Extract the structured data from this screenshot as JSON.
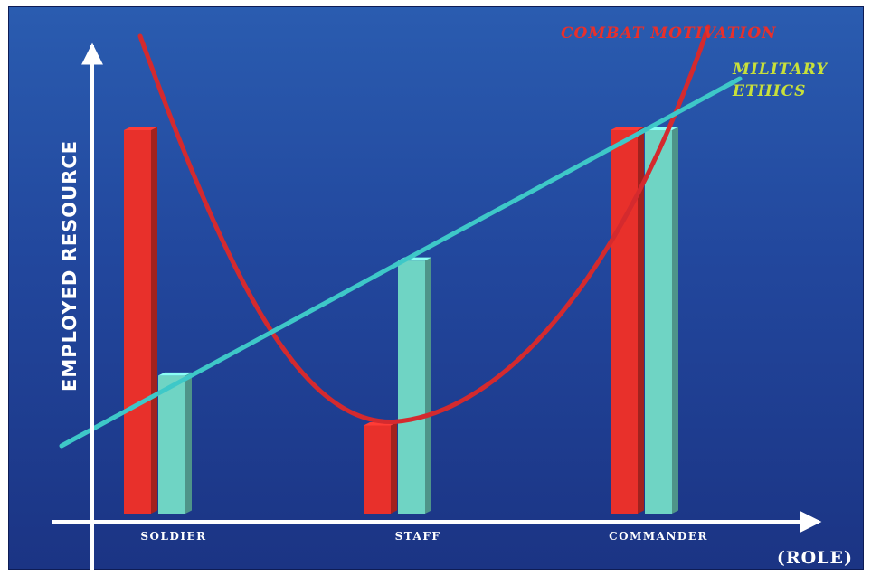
{
  "chart_data": {
    "type": "bar",
    "title": "",
    "ylabel": "EMPLOYED RESOURCE",
    "xlabel": "(ROLE)",
    "categories": [
      "SOLDIER",
      "STAFF",
      "COMMANDER"
    ],
    "ylim": [
      0,
      100
    ],
    "series": [
      {
        "name": "COMBAT MOTIVATION",
        "values": [
          100,
          23,
          100
        ],
        "color": "#e8302b",
        "line_color": "#d42a2e"
      },
      {
        "name": "MILITARY ETHICS",
        "values": [
          36,
          66,
          100
        ],
        "color": "#6fd4c4",
        "line_color": "#3ec8c8"
      }
    ],
    "legend_placement": "top-right",
    "grid": false
  },
  "colors": {
    "background_top": "#2a5cb0",
    "background_bottom": "#1b3484",
    "axis": "#ffffff"
  }
}
